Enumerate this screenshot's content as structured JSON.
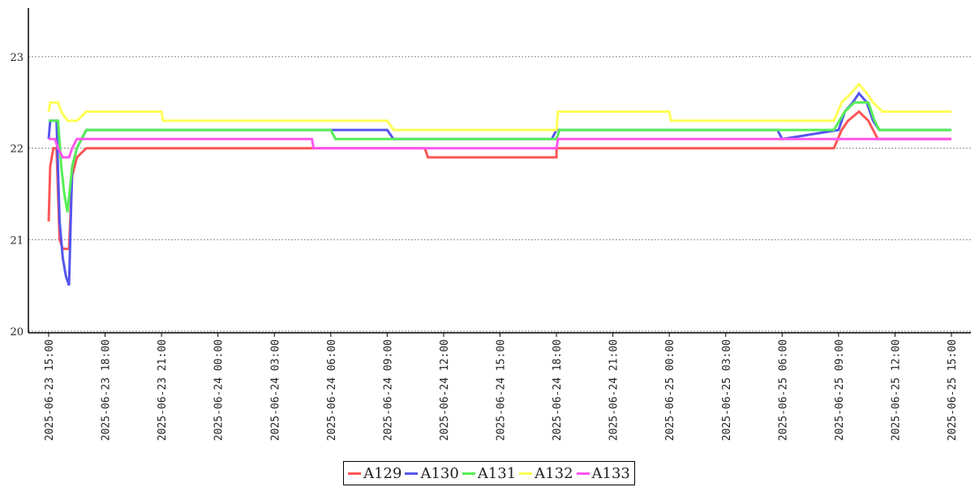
{
  "chart_data": {
    "type": "line",
    "title": "",
    "xlabel": "",
    "ylabel": "",
    "ylim": [
      20,
      23.5
    ],
    "yticks": [
      "20",
      "21",
      "22",
      "23"
    ],
    "grid": "horizontal dotted",
    "legend_position": "bottom-center",
    "x_tick_labels": [
      "2025-06-23 15:00",
      "2025-06-23 18:00",
      "2025-06-23 21:00",
      "2025-06-24 00:00",
      "2025-06-24 03:00",
      "2025-06-24 06:00",
      "2025-06-24 09:00",
      "2025-06-24 12:00",
      "2025-06-24 15:00",
      "2025-06-24 18:00",
      "2025-06-24 21:00",
      "2025-06-25 00:00",
      "2025-06-25 03:00",
      "2025-06-25 06:00",
      "2025-06-25 09:00",
      "2025-06-25 12:00",
      "2025-06-25 15:00"
    ],
    "xlim": [
      "2025-06-23 15:00",
      "2025-06-25 15:00"
    ],
    "series": [
      {
        "name": "A129",
        "color": "#ff5555",
        "points": [
          [
            "2025-06-23 15:00",
            21.2
          ],
          [
            "2025-06-23 15:05",
            21.8
          ],
          [
            "2025-06-23 15:15",
            22.0
          ],
          [
            "2025-06-23 15:25",
            22.0
          ],
          [
            "2025-06-23 15:35",
            21.0
          ],
          [
            "2025-06-23 15:45",
            20.9
          ],
          [
            "2025-06-23 16:05",
            20.9
          ],
          [
            "2025-06-23 16:15",
            21.7
          ],
          [
            "2025-06-23 16:30",
            21.9
          ],
          [
            "2025-06-23 17:00",
            22.0
          ],
          [
            "2025-06-24 08:00",
            22.0
          ],
          [
            "2025-06-24 11:00",
            22.0
          ],
          [
            "2025-06-24 11:10",
            21.9
          ],
          [
            "2025-06-24 18:00",
            21.9
          ],
          [
            "2025-06-24 18:00",
            22.0
          ],
          [
            "2025-06-25 08:45",
            22.0
          ],
          [
            "2025-06-25 09:10",
            22.2
          ],
          [
            "2025-06-25 09:30",
            22.3
          ],
          [
            "2025-06-25 10:05",
            22.4
          ],
          [
            "2025-06-25 10:35",
            22.3
          ],
          [
            "2025-06-25 11:05",
            22.1
          ],
          [
            "2025-06-25 15:00",
            22.1
          ]
        ]
      },
      {
        "name": "A130",
        "color": "#5555ee",
        "points": [
          [
            "2025-06-23 15:00",
            22.1
          ],
          [
            "2025-06-23 15:05",
            22.3
          ],
          [
            "2025-06-23 15:25",
            22.3
          ],
          [
            "2025-06-23 15:35",
            21.2
          ],
          [
            "2025-06-23 15:45",
            20.8
          ],
          [
            "2025-06-23 15:55",
            20.6
          ],
          [
            "2025-06-23 16:05",
            20.5
          ],
          [
            "2025-06-23 16:15",
            21.8
          ],
          [
            "2025-06-23 16:30",
            22.0
          ],
          [
            "2025-06-23 17:00",
            22.2
          ],
          [
            "2025-06-24 09:00",
            22.2
          ],
          [
            "2025-06-24 09:20",
            22.1
          ],
          [
            "2025-06-24 17:45",
            22.1
          ],
          [
            "2025-06-24 18:00",
            22.2
          ],
          [
            "2025-06-25 05:45",
            22.2
          ],
          [
            "2025-06-25 06:00",
            22.1
          ],
          [
            "2025-06-25 09:00",
            22.2
          ],
          [
            "2025-06-25 09:20",
            22.4
          ],
          [
            "2025-06-25 09:45",
            22.5
          ],
          [
            "2025-06-25 10:05",
            22.6
          ],
          [
            "2025-06-25 10:30",
            22.5
          ],
          [
            "2025-06-25 10:50",
            22.3
          ],
          [
            "2025-06-25 11:10",
            22.2
          ],
          [
            "2025-06-25 15:00",
            22.2
          ]
        ]
      },
      {
        "name": "A131",
        "color": "#55ee55",
        "points": [
          [
            "2025-06-23 15:00",
            22.3
          ],
          [
            "2025-06-23 15:30",
            22.3
          ],
          [
            "2025-06-23 15:40",
            21.8
          ],
          [
            "2025-06-23 15:50",
            21.5
          ],
          [
            "2025-06-23 16:00",
            21.3
          ],
          [
            "2025-06-23 16:15",
            21.8
          ],
          [
            "2025-06-23 16:30",
            22.0
          ],
          [
            "2025-06-23 17:00",
            22.2
          ],
          [
            "2025-06-24 06:00",
            22.2
          ],
          [
            "2025-06-24 06:15",
            22.1
          ],
          [
            "2025-06-24 18:00",
            22.1
          ],
          [
            "2025-06-24 18:10",
            22.2
          ],
          [
            "2025-06-25 08:45",
            22.2
          ],
          [
            "2025-06-25 09:20",
            22.4
          ],
          [
            "2025-06-25 09:50",
            22.5
          ],
          [
            "2025-06-25 10:35",
            22.5
          ],
          [
            "2025-06-25 10:55",
            22.3
          ],
          [
            "2025-06-25 11:10",
            22.2
          ],
          [
            "2025-06-25 15:00",
            22.2
          ]
        ]
      },
      {
        "name": "A132",
        "color": "#ffff55",
        "points": [
          [
            "2025-06-23 15:00",
            22.4
          ],
          [
            "2025-06-23 15:05",
            22.5
          ],
          [
            "2025-06-23 15:30",
            22.5
          ],
          [
            "2025-06-23 15:40",
            22.4
          ],
          [
            "2025-06-23 16:00",
            22.3
          ],
          [
            "2025-06-23 16:30",
            22.3
          ],
          [
            "2025-06-23 17:00",
            22.4
          ],
          [
            "2025-06-23 21:00",
            22.4
          ],
          [
            "2025-06-23 21:05",
            22.3
          ],
          [
            "2025-06-24 09:00",
            22.3
          ],
          [
            "2025-06-24 09:20",
            22.2
          ],
          [
            "2025-06-24 18:00",
            22.2
          ],
          [
            "2025-06-24 18:05",
            22.4
          ],
          [
            "2025-06-25 00:00",
            22.4
          ],
          [
            "2025-06-25 00:05",
            22.3
          ],
          [
            "2025-06-25 08:45",
            22.3
          ],
          [
            "2025-06-25 09:10",
            22.5
          ],
          [
            "2025-06-25 09:40",
            22.6
          ],
          [
            "2025-06-25 10:05",
            22.7
          ],
          [
            "2025-06-25 10:30",
            22.6
          ],
          [
            "2025-06-25 10:50",
            22.5
          ],
          [
            "2025-06-25 11:20",
            22.4
          ],
          [
            "2025-06-25 15:00",
            22.4
          ]
        ]
      },
      {
        "name": "A133",
        "color": "#ff55ee",
        "points": [
          [
            "2025-06-23 15:00",
            22.1
          ],
          [
            "2025-06-23 15:20",
            22.1
          ],
          [
            "2025-06-23 15:30",
            22.0
          ],
          [
            "2025-06-23 15:45",
            21.9
          ],
          [
            "2025-06-23 16:05",
            21.9
          ],
          [
            "2025-06-23 16:15",
            22.0
          ],
          [
            "2025-06-23 16:30",
            22.1
          ],
          [
            "2025-06-24 05:00",
            22.1
          ],
          [
            "2025-06-24 05:05",
            22.0
          ],
          [
            "2025-06-24 18:00",
            22.0
          ],
          [
            "2025-06-24 18:05",
            22.1
          ],
          [
            "2025-06-25 15:00",
            22.1
          ]
        ]
      }
    ]
  }
}
